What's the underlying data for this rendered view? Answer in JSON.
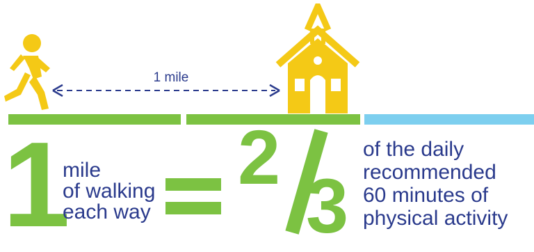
{
  "distance": {
    "label": "1 mile"
  },
  "equation": {
    "left_number": "1",
    "left_text": [
      "mile",
      "of walking",
      "each way"
    ],
    "equals_sign": "=",
    "numerator": "2",
    "denominator": "3",
    "right_text": [
      "of the daily",
      "recommended",
      "60 minutes of",
      "physical activity"
    ]
  },
  "colors": {
    "green": "#7cc242",
    "navy": "#2a3a8c",
    "yellow": "#f4c916",
    "light_blue": "#7dcfef"
  },
  "icons": [
    "walking-person-icon",
    "school-house-icon",
    "double-arrow-icon"
  ]
}
